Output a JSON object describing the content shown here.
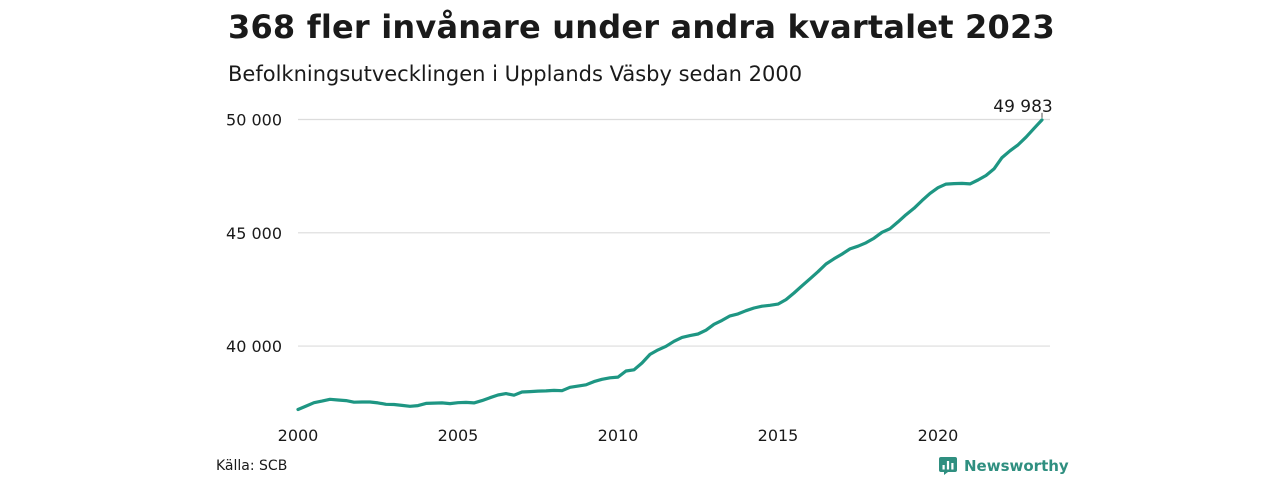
{
  "header": {
    "title": "368 fler invånare under andra kvartalet 2023",
    "subtitle": "Befolkningsutvecklingen i Upplands Väsby sedan 2000"
  },
  "footer": {
    "source": "Källa: SCB",
    "brand": "Newsworthy",
    "brand_icon": "newsworthy-logo-icon"
  },
  "colors": {
    "line": "#1e9683",
    "grid": "#dcdcdc",
    "brand": "#2f8f80"
  },
  "chart_data": {
    "type": "line",
    "title": "368 fler invånare under andra kvartalet 2023",
    "subtitle": "Befolkningsutvecklingen i Upplands Väsby sedan 2000",
    "xlabel": "",
    "ylabel": "",
    "xlim": [
      2000,
      2023.5
    ],
    "ylim": [
      37000,
      50200
    ],
    "grid": "horizontal",
    "x_ticks": [
      2000,
      2005,
      2010,
      2015,
      2020
    ],
    "x_tick_labels": [
      "2000",
      "2005",
      "2010",
      "2015",
      "2020"
    ],
    "y_ticks": [
      40000,
      45000,
      50000
    ],
    "y_tick_labels": [
      "40 000",
      "45 000",
      "50 000"
    ],
    "end_label": "49 983",
    "series": [
      {
        "x": [
          2000.0,
          2000.25,
          2000.5,
          2000.75,
          2001.0,
          2001.25,
          2001.5,
          2001.75,
          2002.0,
          2002.25,
          2002.5,
          2002.75,
          2003.0,
          2003.25,
          2003.5,
          2003.75,
          2004.0,
          2004.25,
          2004.5,
          2004.75,
          2005.0,
          2005.25,
          2005.5,
          2005.75,
          2006.0,
          2006.25,
          2006.5,
          2006.75,
          2007.0,
          2007.25,
          2007.5,
          2007.75,
          2008.0,
          2008.25,
          2008.5,
          2008.75,
          2009.0,
          2009.25,
          2009.5,
          2009.75,
          2010.0,
          2010.25,
          2010.5,
          2010.75,
          2011.0,
          2011.25,
          2011.5,
          2011.75,
          2012.0,
          2012.25,
          2012.5,
          2012.75,
          2013.0,
          2013.25,
          2013.5,
          2013.75,
          2014.0,
          2014.25,
          2014.5,
          2014.75,
          2015.0,
          2015.25,
          2015.5,
          2015.75,
          2016.0,
          2016.25,
          2016.5,
          2016.75,
          2017.0,
          2017.25,
          2017.5,
          2017.75,
          2018.0,
          2018.25,
          2018.5,
          2018.75,
          2019.0,
          2019.25,
          2019.5,
          2019.75,
          2020.0,
          2020.25,
          2020.5,
          2020.75,
          2021.0,
          2021.25,
          2021.5,
          2021.75,
          2022.0,
          2022.25,
          2022.5,
          2022.75,
          2023.0,
          2023.25
        ],
        "values": [
          37200,
          37350,
          37500,
          37570,
          37650,
          37620,
          37590,
          37520,
          37530,
          37530,
          37490,
          37430,
          37420,
          37380,
          37340,
          37370,
          37470,
          37480,
          37490,
          37460,
          37500,
          37510,
          37490,
          37590,
          37720,
          37840,
          37900,
          37830,
          37970,
          37990,
          38010,
          38020,
          38040,
          38030,
          38180,
          38230,
          38290,
          38430,
          38530,
          38600,
          38630,
          38900,
          38950,
          39250,
          39630,
          39830,
          39990,
          40210,
          40380,
          40460,
          40530,
          40700,
          40960,
          41130,
          41330,
          41420,
          41560,
          41680,
          41760,
          41800,
          41850,
          42050,
          42340,
          42660,
          42970,
          43280,
          43620,
          43850,
          44060,
          44290,
          44410,
          44560,
          44760,
          45020,
          45180,
          45480,
          45800,
          46080,
          46420,
          46740,
          46990,
          47150,
          47170,
          47180,
          47160,
          47330,
          47530,
          47820,
          48320,
          48620,
          48880,
          49220,
          49610,
          49983
        ]
      }
    ]
  }
}
